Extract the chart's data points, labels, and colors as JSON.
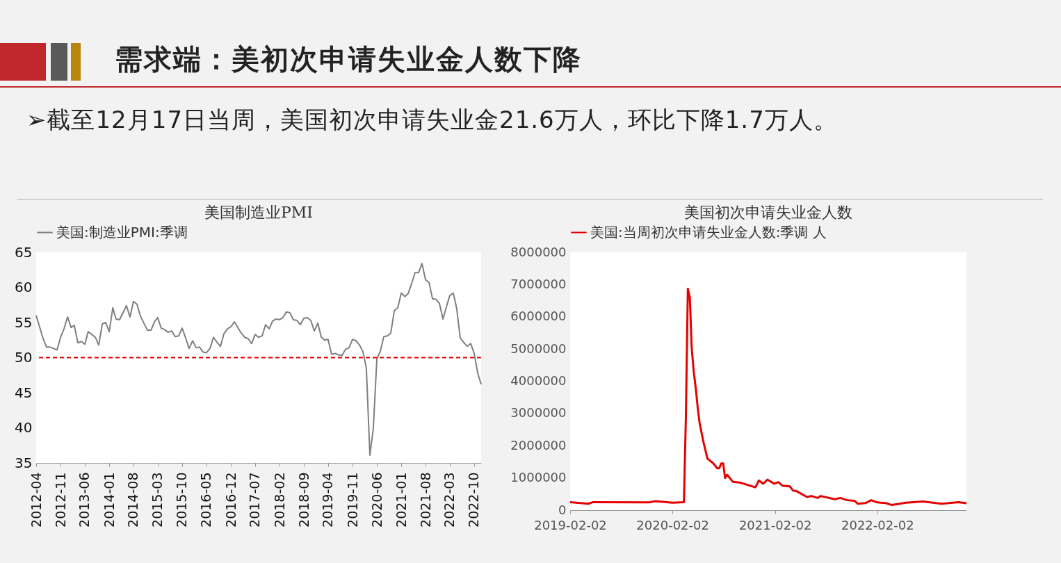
{
  "chart_data": [
    {
      "type": "other",
      "title": "需求端：美初次申请失业金人数下降",
      "annotations": [
        "➢截至12月17日当周，美国初次申请失业金21.6万人，环比下降1.7万人。"
      ]
    },
    {
      "type": "line",
      "title": "美国制造业PMI",
      "legend": "top",
      "series": [
        {
          "name": "美国:制造业PMI:季调",
          "color": "#7f7f7f",
          "x": [
            "2012-04",
            "2012-06",
            "2012-07",
            "2012-08",
            "2012-10",
            "2012-11",
            "2012-12",
            "2013-01",
            "2013-02",
            "2013-03",
            "2013-04",
            "2013-05",
            "2013-06",
            "2013-07",
            "2013-09",
            "2013-10",
            "2013-11",
            "2013-12",
            "2014-01",
            "2014-02",
            "2014-03",
            "2014-04",
            "2014-06",
            "2014-07",
            "2014-08",
            "2014-09",
            "2014-10",
            "2014-12",
            "2015-01",
            "2015-02",
            "2015-03",
            "2015-04",
            "2015-05",
            "2015-06",
            "2015-07",
            "2015-08",
            "2015-09",
            "2015-10",
            "2015-11",
            "2015-12",
            "2016-01",
            "2016-02",
            "2016-03",
            "2016-04",
            "2016-05",
            "2016-06",
            "2016-07",
            "2016-08",
            "2016-09",
            "2016-10",
            "2016-11",
            "2016-12",
            "2017-01",
            "2017-03",
            "2017-04",
            "2017-05",
            "2017-06",
            "2017-07",
            "2017-08",
            "2017-09",
            "2017-10",
            "2017-11",
            "2017-12",
            "2018-01",
            "2018-02",
            "2018-03",
            "2018-04",
            "2018-05",
            "2018-06",
            "2018-07",
            "2018-08",
            "2018-09",
            "2018-10",
            "2018-11",
            "2018-12",
            "2019-01",
            "2019-02",
            "2019-03",
            "2019-04",
            "2019-05",
            "2019-06",
            "2019-07",
            "2019-08",
            "2019-09",
            "2019-10",
            "2019-11",
            "2019-12",
            "2020-01",
            "2020-02",
            "2020-03",
            "2020-04",
            "2020-05",
            "2020-06",
            "2020-07",
            "2020-08",
            "2020-09",
            "2020-10",
            "2020-11",
            "2020-12",
            "2021-01",
            "2021-02",
            "2021-03",
            "2021-04",
            "2021-05",
            "2021-06",
            "2021-07",
            "2021-08",
            "2021-09",
            "2021-10",
            "2021-11",
            "2021-12",
            "2022-01",
            "2022-02",
            "2022-03",
            "2022-04",
            "2022-05",
            "2022-06",
            "2022-07",
            "2022-08",
            "2022-09",
            "2022-10",
            "2022-11",
            "2022-12"
          ],
          "values": [
            56.0,
            52.7,
            51.5,
            51.5,
            51.1,
            52.9,
            54.1,
            55.8,
            54.3,
            54.6,
            52.1,
            52.3,
            51.9,
            53.7,
            52.9,
            51.8,
            54.8,
            55.0,
            53.7,
            57.1,
            55.5,
            55.4,
            57.4,
            55.8,
            58.0,
            57.6,
            55.9,
            53.9,
            53.9,
            55.1,
            55.7,
            54.2,
            54.0,
            53.6,
            53.8,
            53.0,
            53.1,
            54.2,
            52.8,
            51.3,
            52.4,
            51.4,
            51.5,
            50.8,
            50.7,
            51.3,
            52.9,
            52.2,
            51.6,
            53.4,
            54.1,
            54.4,
            55.1,
            53.5,
            52.9,
            52.7,
            52.0,
            53.3,
            52.9,
            53.1,
            54.7,
            54.1,
            55.2,
            55.5,
            55.4,
            55.7,
            56.5,
            56.4,
            55.4,
            55.3,
            54.7,
            55.6,
            55.7,
            55.3,
            53.8,
            54.9,
            52.9,
            52.5,
            52.6,
            50.5,
            50.6,
            50.4,
            50.3,
            51.2,
            51.4,
            52.6,
            52.4,
            51.8,
            50.8,
            48.5,
            36.1,
            39.9,
            49.8,
            50.9,
            53.0,
            53.1,
            53.5,
            56.7,
            57.1,
            59.2,
            58.7,
            59.1,
            60.5,
            62.1,
            62.1,
            63.4,
            61.1,
            60.7,
            58.4,
            58.3,
            57.7,
            55.5,
            57.3,
            58.8,
            59.2,
            57.0,
            52.8,
            52.2,
            51.6,
            52.0,
            50.6,
            47.8,
            46.2
          ]
        }
      ],
      "xlim": [
        "2012-04",
        "2022-12"
      ],
      "xticks": [
        "2012-04",
        "2012-11",
        "2013-06",
        "2014-01",
        "2014-08",
        "2015-03",
        "2015-10",
        "2016-05",
        "2016-12",
        "2017-07",
        "2018-02",
        "2018-09",
        "2019-04",
        "2019-11",
        "2020-06",
        "2021-01",
        "2021-08",
        "2022-03",
        "2022-10"
      ],
      "ylim": [
        35,
        65
      ],
      "yticks": [
        35,
        40,
        45,
        50,
        55,
        60,
        65
      ],
      "ref_lines": [
        {
          "axis": "y",
          "value": 50,
          "color": "#e00000",
          "line_style": "dashed"
        }
      ]
    },
    {
      "type": "line",
      "title": "美国初次申请失业金人数",
      "legend": "top",
      "series": [
        {
          "name": "美国:当周初次申请失业金人数:季调 人",
          "color": "#e60000",
          "x": [
            "2019-02-02",
            "2019-04-08",
            "2019-04-25",
            "2019-11-10",
            "2019-12-03",
            "2020-02-02",
            "2020-03-14",
            "2020-03-21",
            "2020-03-28",
            "2020-04-04",
            "2020-04-11",
            "2020-04-18",
            "2020-04-25",
            "2020-05-02",
            "2020-05-09",
            "2020-05-16",
            "2020-05-23",
            "2020-06-06",
            "2020-06-13",
            "2020-06-27",
            "2020-07-11",
            "2020-07-18",
            "2020-07-25",
            "2020-08-01",
            "2020-08-08",
            "2020-08-15",
            "2020-09-05",
            "2020-10-03",
            "2020-10-29",
            "2020-11-24",
            "2020-12-06",
            "2020-12-22",
            "2021-01-06",
            "2021-01-30",
            "2021-02-14",
            "2021-02-28",
            "2021-03-27",
            "2021-04-07",
            "2021-04-20",
            "2021-05-27",
            "2021-06-12",
            "2021-07-04",
            "2021-07-15",
            "2021-09-03",
            "2021-09-23",
            "2021-10-17",
            "2021-11-13",
            "2021-11-24",
            "2021-12-22",
            "2022-01-11",
            "2022-02-02",
            "2022-03-04",
            "2022-03-26",
            "2022-05-15",
            "2022-07-15",
            "2022-09-19",
            "2022-11-19",
            "2022-12-17"
          ],
          "values": [
            250000,
            200000,
            250000,
            240000,
            280000,
            230000,
            250000,
            2900000,
            6870000,
            6600000,
            5000000,
            4300000,
            3800000,
            3200000,
            2700000,
            2400000,
            2100000,
            1600000,
            1550000,
            1450000,
            1300000,
            1300000,
            1450000,
            1450000,
            1000000,
            1100000,
            880000,
            850000,
            780000,
            710000,
            920000,
            820000,
            950000,
            820000,
            870000,
            760000,
            740000,
            610000,
            590000,
            410000,
            440000,
            380000,
            440000,
            340000,
            380000,
            310000,
            290000,
            200000,
            220000,
            310000,
            240000,
            220000,
            160000,
            230000,
            270000,
            200000,
            250000,
            216000
          ]
        }
      ],
      "xlim": [
        "2019-02-02",
        "2022-12-17"
      ],
      "xticks": [
        "2019-02-02",
        "2020-02-02",
        "2021-02-02",
        "2022-02-02"
      ],
      "ylim": [
        0,
        8000000
      ],
      "yticks": [
        0,
        1000000,
        2000000,
        3000000,
        4000000,
        5000000,
        6000000,
        7000000,
        8000000
      ]
    }
  ]
}
